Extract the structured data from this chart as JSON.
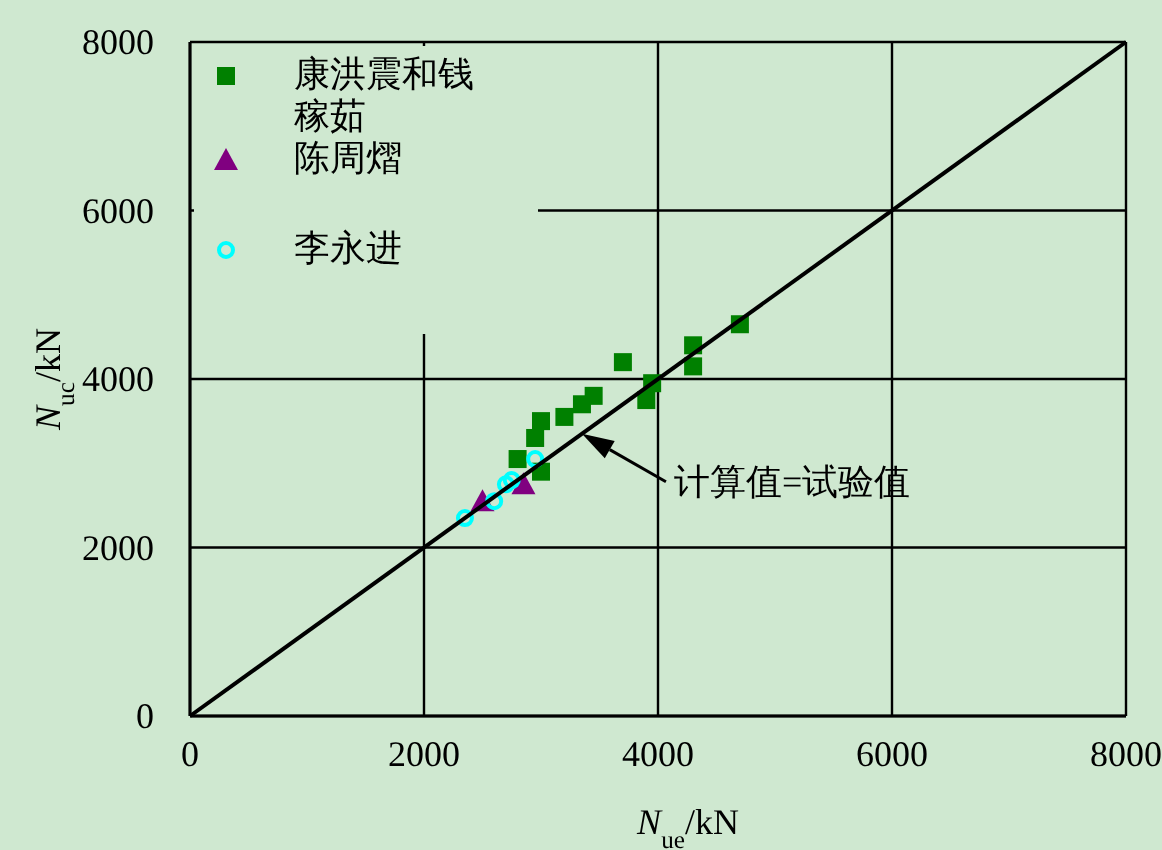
{
  "chart_data": {
    "type": "scatter",
    "xlabel": "N$_{ue}$/kN",
    "ylabel": "N$_{uc}$/kN",
    "xlim": [
      0,
      8000
    ],
    "ylim": [
      0,
      8000
    ],
    "xticks": [
      0,
      2000,
      4000,
      6000,
      8000
    ],
    "yticks": [
      0,
      2000,
      4000,
      6000,
      8000
    ],
    "grid": true,
    "legend": "top left",
    "series": [
      {
        "name": "康洪震和钱稼茹",
        "color": "#008000",
        "marker": "square",
        "x": [
          4700,
          4300,
          4300,
          3700,
          3950,
          3900,
          3450,
          3350,
          3200,
          3000,
          2950,
          2800,
          3000
        ],
        "values": [
          4650,
          4400,
          4150,
          4200,
          3950,
          3750,
          3800,
          3700,
          3550,
          3500,
          3300,
          3050,
          2900
        ]
      },
      {
        "name": "陈周熠",
        "color": "#800080",
        "marker": "triangle",
        "x": [
          2500,
          2850
        ],
        "values": [
          2550,
          2750
        ]
      },
      {
        "name": "李永进",
        "color": "#00ffff",
        "marker": "circle",
        "x": [
          2350,
          2600,
          2700,
          2750,
          2950
        ],
        "values": [
          2350,
          2550,
          2750,
          2800,
          3050
        ]
      },
      {
        "type": "line",
        "color": "#000000",
        "marker": "none",
        "x": [
          0,
          8000
        ],
        "values": [
          0,
          8000
        ]
      }
    ],
    "annotations": [
      {
        "text": "计算值=试验值",
        "x": 3350,
        "y": 3350
      }
    ]
  }
}
